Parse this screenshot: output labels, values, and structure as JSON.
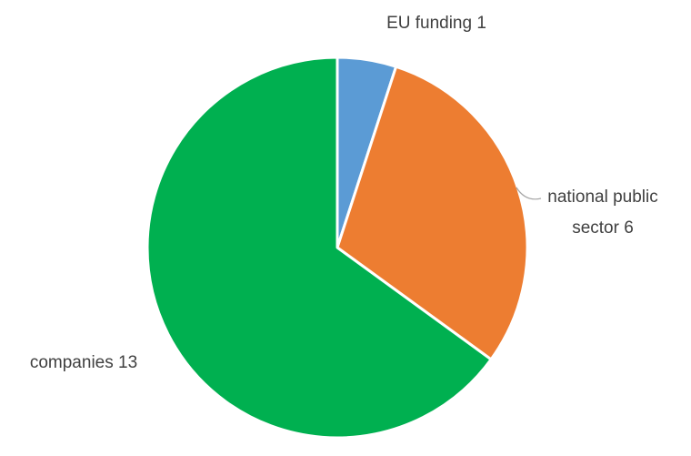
{
  "chart_data": {
    "type": "pie",
    "title": "",
    "legend": "none",
    "slices": [
      {
        "label": "EU funding",
        "value": 1,
        "color": "#5b9bd5"
      },
      {
        "label": "national public sector",
        "value": 6,
        "color": "#ed7d31"
      },
      {
        "label": "companies",
        "value": 13,
        "color": "#00b050"
      }
    ],
    "data_labels": {
      "eu": "EU funding 1",
      "national_line1": "national public",
      "national_line2": "sector 6",
      "companies": "companies 13"
    }
  }
}
